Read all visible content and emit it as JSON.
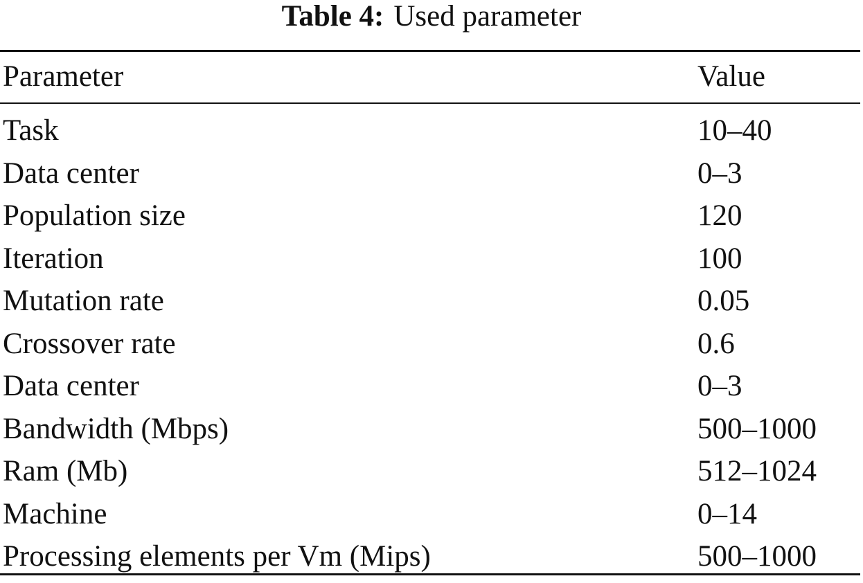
{
  "caption": {
    "label": "Table 4:",
    "title": "Used parameter"
  },
  "table": {
    "headers": [
      "Parameter",
      "Value"
    ],
    "rows": [
      [
        "Task",
        "10–40"
      ],
      [
        "Data center",
        "0–3"
      ],
      [
        "Population size",
        "120"
      ],
      [
        "Iteration",
        "100"
      ],
      [
        "Mutation rate",
        "0.05"
      ],
      [
        "Crossover rate",
        "0.6"
      ],
      [
        "Data center",
        "0–3"
      ],
      [
        "Bandwidth (Mbps)",
        "500–1000"
      ],
      [
        "Ram (Mb)",
        "512–1024"
      ],
      [
        "Machine",
        "0–14"
      ],
      [
        "Processing elements per Vm (Mips)",
        "500–1000"
      ]
    ]
  }
}
